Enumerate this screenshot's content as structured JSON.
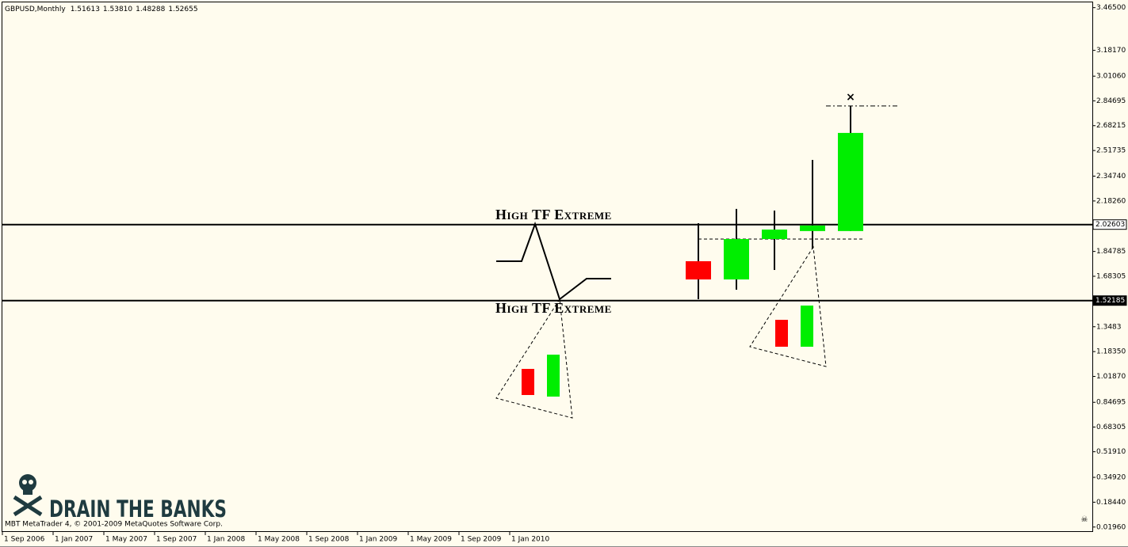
{
  "chart_data": {
    "type": "candlestick",
    "symbol": "GBPUSD,Monthly",
    "ohlc": [
      "1.51613",
      "1.53810",
      "1.48288",
      "1.52655"
    ],
    "ylim": [
      -0.013,
      3.5
    ],
    "yticks": [
      {
        "value": 3.465,
        "label": "3.46500"
      },
      {
        "value": 3.1817,
        "label": "3.18170"
      },
      {
        "value": 3.0106,
        "label": "3.01060"
      },
      2.84695,
      2.68215,
      2.51735,
      {
        "value": 2.3474,
        "label": "2.34740"
      },
      {
        "value": 2.1826,
        "label": "2.18260"
      },
      1.84785,
      1.68305,
      1.3483,
      {
        "value": 1.1835,
        "label": "1.18350"
      },
      {
        "value": 1.0187,
        "label": "1.01870"
      },
      0.84695,
      0.68305,
      {
        "value": 0.5191,
        "label": "0.51910"
      },
      {
        "value": 0.3492,
        "label": "0.34920"
      },
      {
        "value": 0.1844,
        "label": "0.18440"
      },
      {
        "value": 0.0196,
        "label": "0.01960"
      }
    ],
    "levels": [
      2.02603,
      1.52185
    ],
    "x_labels": [
      "1 Sep 2006",
      "1 Jan 2007",
      "1 May 2007",
      "1 Sep 2007",
      "1 Jan 2008",
      "1 May 2008",
      "1 Sep 2008",
      "1 Jan 2009",
      "1 May 2009",
      "1 Sep 2009",
      "1 Jan 2010"
    ],
    "candles": [
      {
        "open": 1.783,
        "high": 2.035,
        "low": 1.531,
        "close": 1.662
      },
      {
        "open": 1.662,
        "high": 2.13,
        "low": 1.594,
        "close": 1.93
      },
      {
        "open": 1.93,
        "high": 2.119,
        "low": 1.725,
        "close": 1.993
      },
      {
        "open": 1.983,
        "high": 2.455,
        "low": 1.867,
        "close": 2.02
      },
      {
        "open": 1.983,
        "high": 2.813,
        "low": 1.983,
        "close": 2.634
      }
    ],
    "up_color": "#00ee00",
    "down_color": "#ff0000",
    "annotations": [
      "High TF Extreme",
      "High TF Extreme"
    ],
    "copyright": "MBT MetaTrader 4, © 2001-2009 MetaQuotes Software Corp.",
    "logo": "DRAIN THE BANKS"
  }
}
